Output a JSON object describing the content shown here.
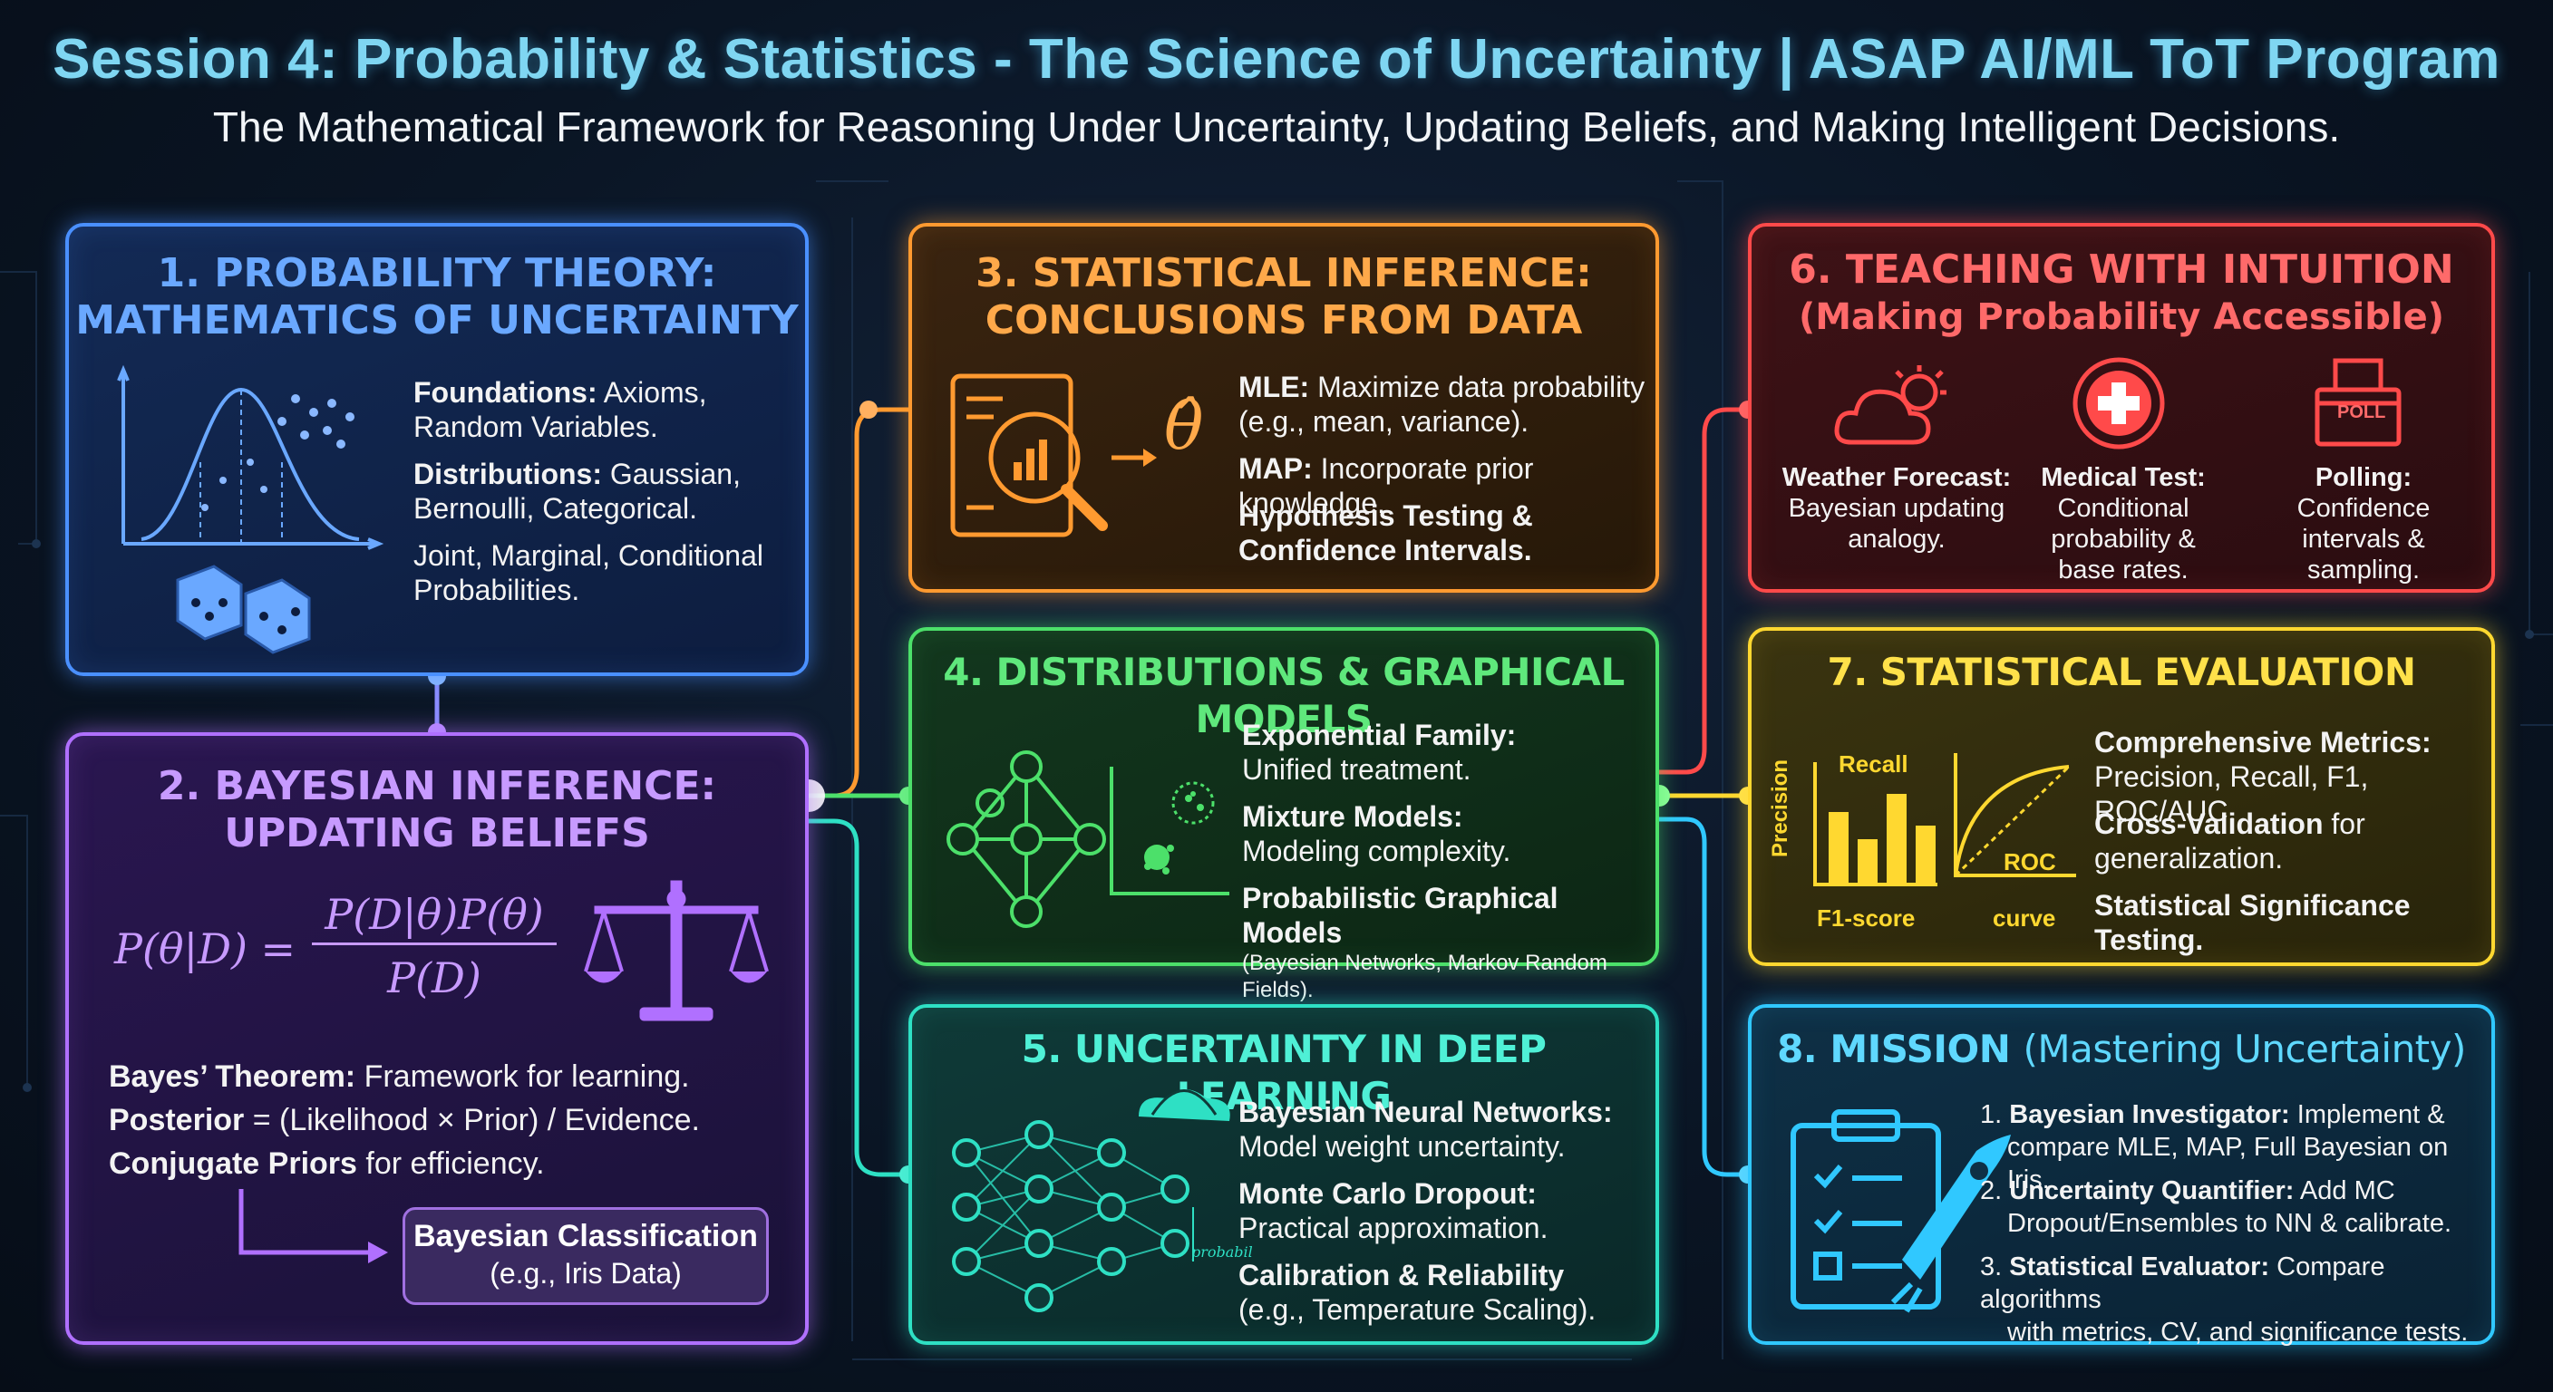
{
  "header": {
    "title": "Session 4: Probability & Statistics - The Science of Uncertainty | ASAP AI/ML ToT Program",
    "subtitle": "The Mathematical Framework for Reasoning Under Uncertainty, Updating Beliefs, and Making Intelligent Decisions."
  },
  "p1": {
    "title_l1": "1. PROBABILITY THEORY:",
    "title_l2": "MATHEMATICS OF UNCERTAINTY",
    "b1_bold": "Foundations:",
    "b1_rest": " Axioms,",
    "b1_l2": "Random Variables.",
    "b2_bold": "Distributions:",
    "b2_rest": " Gaussian,",
    "b2_l2": "Bernoulli, Categorical.",
    "b3_l1": "Joint, Marginal, Conditional",
    "b3_l2": "Probabilities."
  },
  "p2": {
    "title_l1": "2. BAYESIAN INFERENCE:",
    "title_l2": "UPDATING BELIEFS",
    "formula_lhs": "P(θ|D) =",
    "formula_num": "P(D|θ)P(θ)",
    "formula_den": "P(D)",
    "b1_bold": "Bayes’ Theorem:",
    "b1_rest": " Framework for learning.",
    "b2_bold": "Posterior",
    "b2_rest": " = (Likelihood × Prior) / Evidence.",
    "b3_bold": "Conjugate Priors",
    "b3_rest": " for efficiency.",
    "box_l1": "Bayesian Classification",
    "box_l2": "(e.g., Iris Data)"
  },
  "p3": {
    "title_l1": "3. STATISTICAL INFERENCE:",
    "title_l2": "CONCLUSIONS FROM DATA",
    "theta_symbol": "θ̂",
    "b1_bold": "MLE:",
    "b1_rest": " Maximize data probability",
    "b1_l2": "(e.g., mean, variance).",
    "b2_bold": "MAP:",
    "b2_rest": " Incorporate prior knowledge.",
    "b3_l1": "Hypothesis Testing &",
    "b3_l2": "Confidence Intervals."
  },
  "p4": {
    "title": "4. DISTRIBUTIONS & GRAPHICAL MODELS",
    "b1_bold": "Exponential Family:",
    "b1_l2": "Unified treatment.",
    "b2_bold": "Mixture Models:",
    "b2_l2": "Modeling complexity.",
    "b3_bold": "Probabilistic Graphical Models",
    "b3_l2": "(Bayesian Networks, Markov Random Fields)."
  },
  "p5": {
    "title": "5. UNCERTAINTY IN DEEP LEARNING",
    "icon_label": "probabil",
    "b1_bold": "Bayesian Neural Networks:",
    "b1_l2": "Model weight uncertainty.",
    "b2_bold": "Monte Carlo Dropout:",
    "b2_l2": "Practical approximation.",
    "b3_bold": "Calibration & Reliability",
    "b3_l2": "(e.g., Temperature Scaling)."
  },
  "p6": {
    "title_l1": "6. TEACHING WITH INTUITION",
    "title_l2": "(Making Probability Accessible)",
    "poll_label": "POLL",
    "items": [
      {
        "bold": "Weather Forecast:",
        "l2": "Bayesian updating",
        "l3": "analogy.",
        "l4": ""
      },
      {
        "bold": "Medical Test:",
        "l2": "Conditional",
        "l3": "probability &",
        "l4": "base rates."
      },
      {
        "bold": "Polling:",
        "l2": "Confidence",
        "l3": "intervals &",
        "l4": "sampling."
      }
    ]
  },
  "p7": {
    "title": "7. STATISTICAL EVALUATION",
    "chart_recall": "Recall",
    "chart_precision": "Precision",
    "chart_f1": "F1-score",
    "chart_roc": "ROC",
    "chart_curve": "curve",
    "b1_bold": "Comprehensive Metrics:",
    "b1_l2": "Precision, Recall, F1, ROC/AUC.",
    "b2_bold": "Cross-Validation",
    "b2_rest": " for",
    "b2_l2": "generalization.",
    "b3_bold": "Statistical Significance Testing."
  },
  "p8": {
    "title_l1": "8. MISSION ",
    "title_l2": "(Mastering Uncertainty)",
    "items": [
      {
        "num": "1.",
        "bold": "Bayesian Investigator:",
        "rest": " Implement &",
        "l2": "compare MLE, MAP, Full Bayesian on Iris."
      },
      {
        "num": "2.",
        "bold": "Uncertainty Quantifier:",
        "rest": " Add MC",
        "l2": "Dropout/Ensembles to NN & calibrate."
      },
      {
        "num": "3.",
        "bold": "Statistical Evaluator:",
        "rest": " Compare algorithms",
        "l2": "with metrics, CV, and significance tests."
      }
    ]
  },
  "colors": {
    "blue": "#4a90ff",
    "purple": "#b070ff",
    "orange": "#ff9a30",
    "green": "#4ce06a",
    "teal": "#2ee0c4",
    "red": "#ff4a4a",
    "yellow": "#ffd830",
    "cyan": "#30c8ff"
  }
}
